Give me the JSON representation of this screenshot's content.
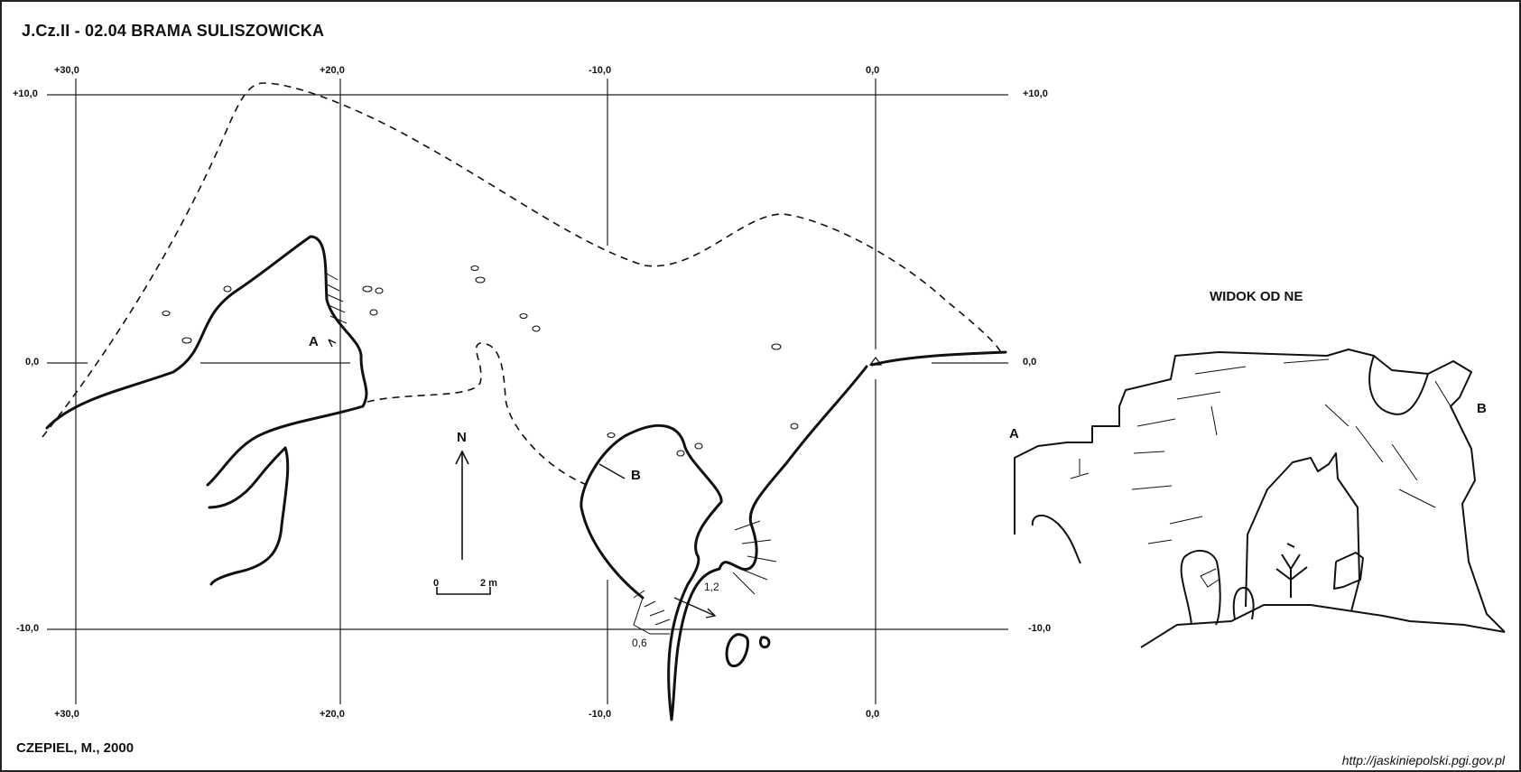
{
  "title": "J.Cz.II - 02.04  BRAMA SULISZOWICKA",
  "author": "CZEPIEL, M., 2000",
  "source_url": "http://jaskiniepolski.pgi.gov.pl",
  "view_title": "WIDOK OD NE",
  "grid": {
    "x_labels": [
      "+30,0",
      "+20,0",
      "-10,0",
      "0,0"
    ],
    "y_labels": [
      "+10,0",
      "0,0",
      "-10,0"
    ]
  },
  "plan_labels": {
    "section_a": "A",
    "section_b": "B",
    "north": "N",
    "depth_1": "1,2",
    "depth_2": "0,6"
  },
  "scale_bar": {
    "start": "0",
    "end": "2 m"
  },
  "view_labels": {
    "a": "A",
    "b": "B"
  },
  "colors": {
    "ink": "#111111",
    "grid": "#222222",
    "background": "#ffffff"
  }
}
